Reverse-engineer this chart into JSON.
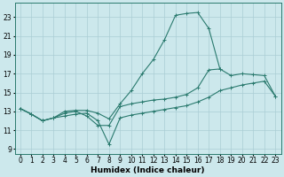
{
  "bg_color": "#cce8ec",
  "line_color": "#2a7a6e",
  "grid_color": "#aacdd4",
  "xlabel": "Humidex (Indice chaleur)",
  "xlabel_fontsize": 6.5,
  "tick_fontsize": 5.5,
  "xlim": [
    -0.5,
    23.5
  ],
  "ylim": [
    8.5,
    24.5
  ],
  "yticks": [
    9,
    11,
    13,
    15,
    17,
    19,
    21,
    23
  ],
  "xticks": [
    0,
    1,
    2,
    3,
    4,
    5,
    6,
    7,
    8,
    9,
    10,
    11,
    12,
    13,
    14,
    15,
    16,
    17,
    18,
    19,
    20,
    21,
    22,
    23
  ],
  "line1_x": [
    0,
    1,
    2,
    3,
    4,
    5,
    6,
    7,
    8,
    9,
    10,
    11,
    12,
    13,
    14,
    15,
    16,
    17,
    18
  ],
  "line1_y": [
    13.3,
    12.7,
    12.0,
    12.3,
    13.0,
    13.1,
    13.1,
    12.8,
    12.2,
    13.8,
    15.2,
    17.0,
    18.5,
    20.6,
    23.2,
    23.4,
    23.5,
    21.8,
    17.5
  ],
  "line2_x": [
    0,
    1,
    2,
    3,
    4,
    5,
    6,
    7,
    8,
    9,
    10,
    11,
    12,
    13,
    14,
    15,
    16,
    17,
    18,
    19,
    20,
    21,
    22,
    23
  ],
  "line2_y": [
    13.3,
    12.7,
    12.0,
    12.3,
    12.8,
    13.0,
    12.5,
    11.5,
    11.5,
    13.5,
    13.8,
    14.0,
    14.2,
    14.3,
    14.5,
    14.8,
    15.5,
    17.4,
    17.5,
    16.8,
    17.0,
    16.9,
    16.8,
    14.6
  ],
  "line3_x": [
    0,
    1,
    2,
    3,
    4,
    5,
    6,
    7,
    8,
    9,
    10,
    11,
    12,
    13,
    14,
    15,
    16,
    17,
    18,
    19,
    20,
    21,
    22,
    23
  ],
  "line3_y": [
    13.3,
    12.7,
    12.0,
    12.3,
    12.5,
    12.7,
    12.8,
    12.0,
    9.5,
    12.3,
    12.6,
    12.8,
    13.0,
    13.2,
    13.4,
    13.6,
    14.0,
    14.5,
    15.2,
    15.5,
    15.8,
    16.0,
    16.2,
    14.6
  ]
}
